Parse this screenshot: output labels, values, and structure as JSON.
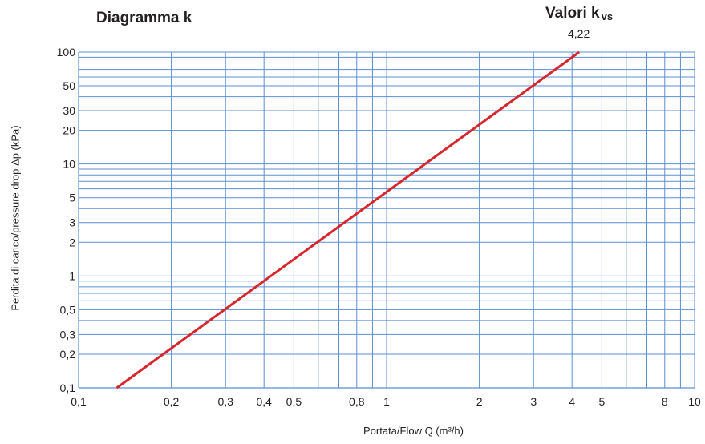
{
  "header": {
    "title": "Diagramma k",
    "kvs_label": "Valori k",
    "kvs_subscript": "vs",
    "kvs_value": "4,22"
  },
  "chart_data": {
    "type": "line",
    "title": "Diagramma k",
    "xlabel": "Portata/Flow Q (m³/h)",
    "ylabel": "Perdita di carico/pressure drop Δp (kPa)",
    "x_scale": "log",
    "y_scale": "log",
    "xlim": [
      0.1,
      10
    ],
    "ylim": [
      0.1,
      100
    ],
    "grid": true,
    "x_ticks": [
      {
        "value": 0.1,
        "label": "0,1"
      },
      {
        "value": 0.2,
        "label": "0,2"
      },
      {
        "value": 0.3,
        "label": "0,3"
      },
      {
        "value": 0.4,
        "label": "0,4"
      },
      {
        "value": 0.5,
        "label": "0,5"
      },
      {
        "value": 0.8,
        "label": "0,8"
      },
      {
        "value": 1,
        "label": "1"
      },
      {
        "value": 2,
        "label": "2"
      },
      {
        "value": 3,
        "label": "3"
      },
      {
        "value": 4,
        "label": "4"
      },
      {
        "value": 5,
        "label": "5"
      },
      {
        "value": 8,
        "label": "8"
      },
      {
        "value": 10,
        "label": "10"
      }
    ],
    "y_ticks": [
      {
        "value": 0.1,
        "label": "0,1"
      },
      {
        "value": 0.2,
        "label": "0,2"
      },
      {
        "value": 0.3,
        "label": "0,3"
      },
      {
        "value": 0.5,
        "label": "0,5"
      },
      {
        "value": 1,
        "label": "1"
      },
      {
        "value": 2,
        "label": "2"
      },
      {
        "value": 3,
        "label": "3"
      },
      {
        "value": 5,
        "label": "5"
      },
      {
        "value": 10,
        "label": "10"
      },
      {
        "value": 20,
        "label": "20"
      },
      {
        "value": 30,
        "label": "30"
      },
      {
        "value": 50,
        "label": "50"
      },
      {
        "value": 100,
        "label": "100"
      }
    ],
    "series": [
      {
        "kvs": 4.22,
        "color": "#d7262c",
        "points": [
          {
            "x": 0.133,
            "y": 0.1
          },
          {
            "x": 4.22,
            "y": 100
          }
        ]
      }
    ],
    "colors": {
      "grid": "#5b8fd0",
      "line": "#d7262c",
      "text": "#231f20"
    }
  }
}
